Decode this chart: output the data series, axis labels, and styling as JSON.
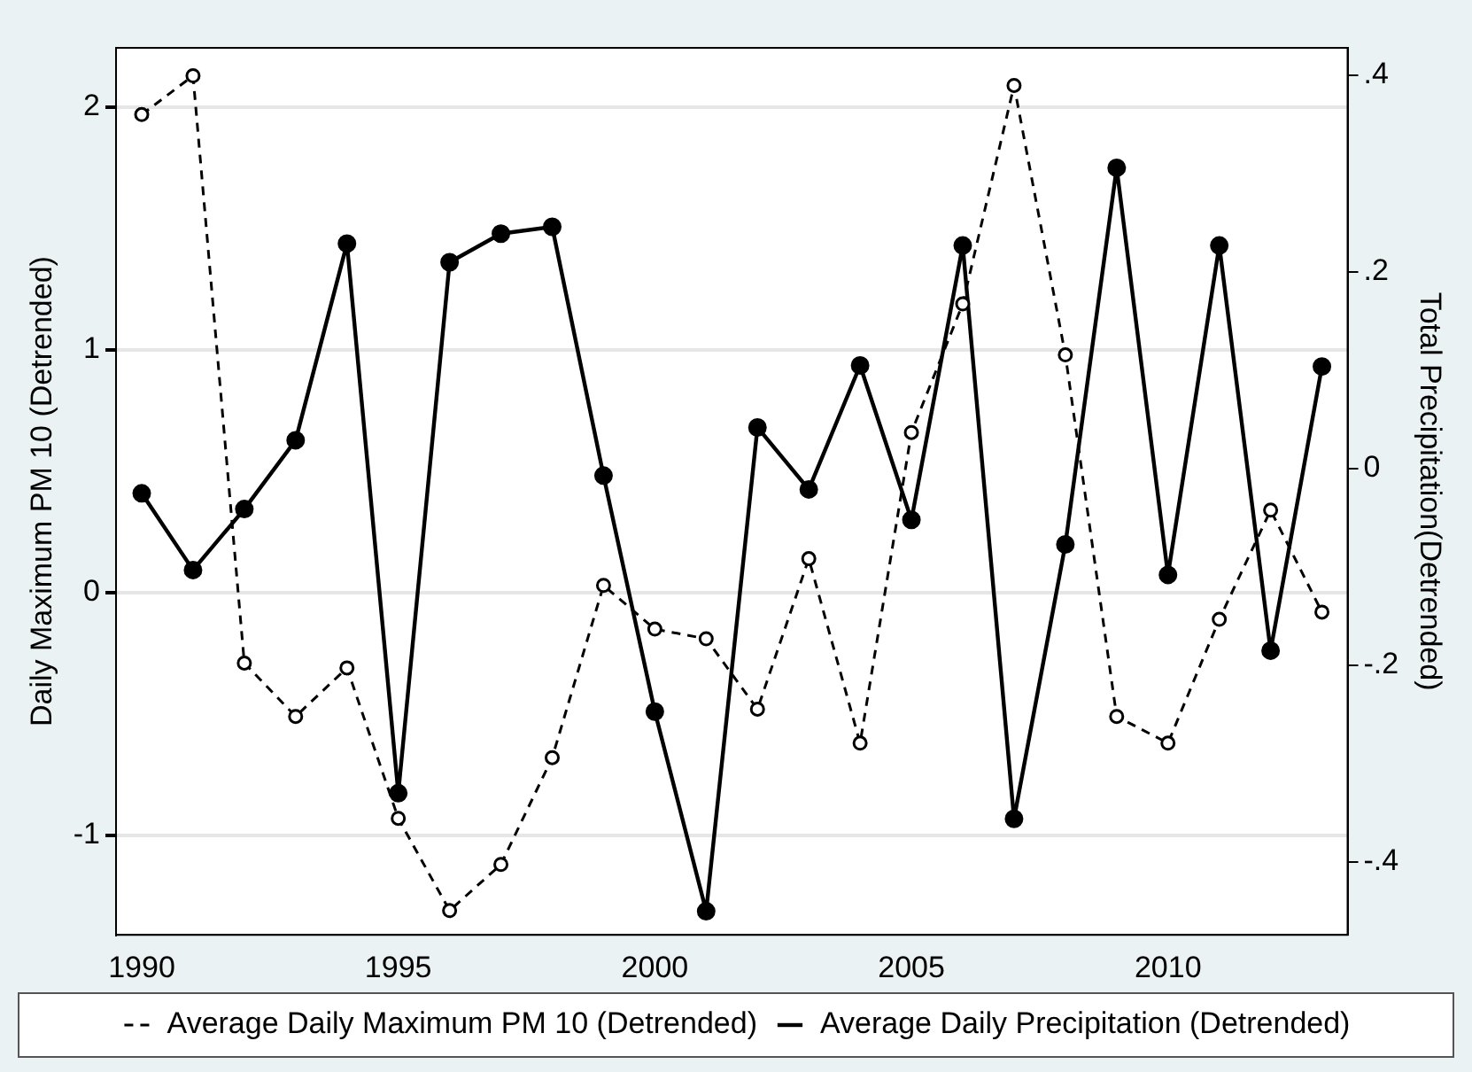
{
  "chart_data": {
    "type": "line",
    "x": [
      1990,
      1991,
      1992,
      1993,
      1994,
      1995,
      1996,
      1997,
      1998,
      1999,
      2000,
      2001,
      2002,
      2003,
      2004,
      2005,
      2006,
      2007,
      2008,
      2009,
      2010,
      2011,
      2012,
      2013
    ],
    "series": [
      {
        "name": "Average Daily Maximum PM 10 (Detrended)",
        "color": "#000000",
        "line_style": "dashed",
        "marker": "circle",
        "values": [
          1.97,
          2.13,
          -0.29,
          -0.51,
          -0.31,
          -0.93,
          -1.31,
          -1.12,
          -0.68,
          0.03,
          -0.15,
          -0.19,
          -0.48,
          0.14,
          -0.62,
          0.66,
          1.19,
          2.09,
          0.98,
          -0.51,
          -0.62,
          -0.11,
          0.34,
          -0.08
        ]
      },
      {
        "name": "Average Daily Precipitation (Detrended)",
        "color": "#000000",
        "line_style": "solid",
        "marker": "circle",
        "axis": "y2",
        "values": [
          -0.025,
          -0.103,
          -0.041,
          0.029,
          0.229,
          -0.33,
          0.21,
          0.239,
          0.246,
          -0.007,
          -0.247,
          -0.45,
          0.042,
          -0.021,
          0.105,
          -0.052,
          0.227,
          -0.356,
          -0.077,
          0.306,
          -0.108,
          0.227,
          -0.185,
          0.104
        ]
      }
    ],
    "ylabel": "Daily Maximum PM 10 (Detrended)",
    "y2label": "Total Precipitation(Detrended)",
    "xlim": [
      1989.5,
      2013.5
    ],
    "xticks": [
      1990,
      1995,
      2000,
      2005,
      2010
    ],
    "ylim": [
      -1.41,
      2.245
    ],
    "yticks": [
      -1,
      0,
      1,
      2
    ],
    "y2lim": [
      -0.474,
      0.428
    ],
    "y2ticks": [
      {
        "value": -0.4,
        "label": "-.4"
      },
      {
        "value": -0.2,
        "label": "-.2"
      },
      0,
      {
        "value": 0.2,
        "label": ".2"
      },
      {
        "value": 0.4,
        "label": ".4"
      }
    ],
    "grid": "y",
    "legend": "bottom"
  }
}
